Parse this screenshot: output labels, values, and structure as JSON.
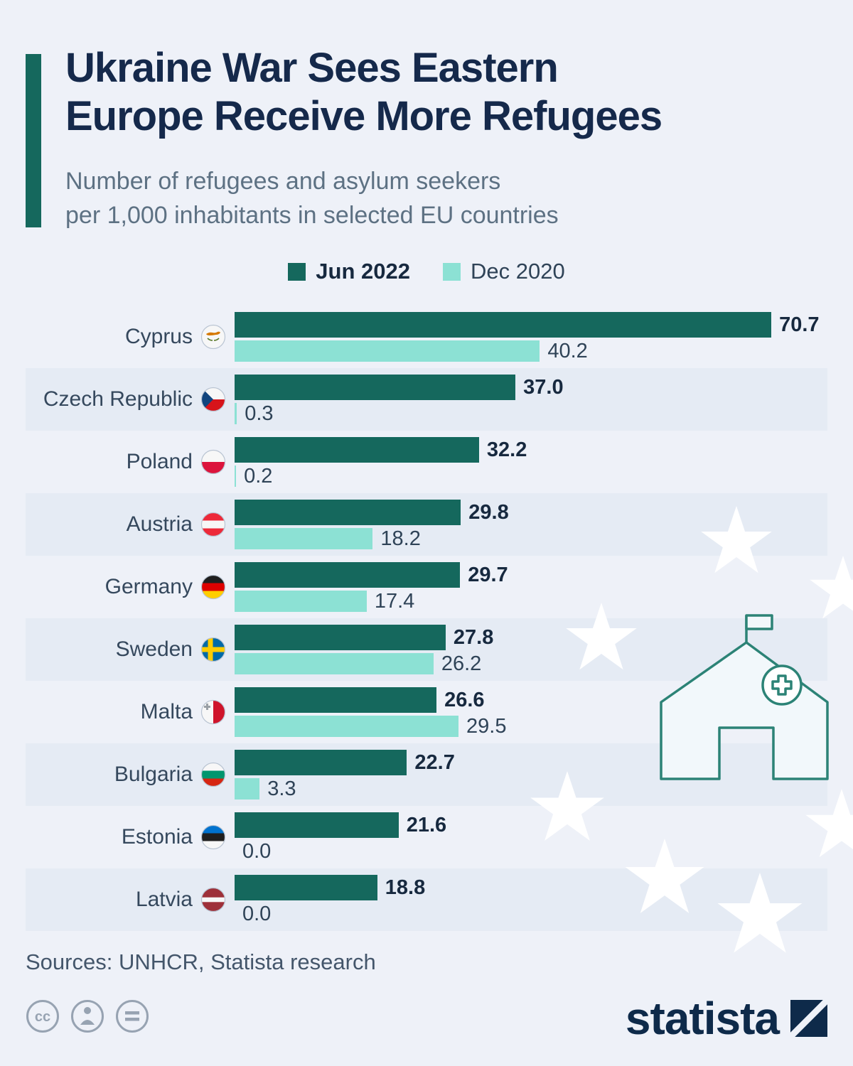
{
  "header": {
    "title_lines": [
      "Ukraine War Sees Eastern",
      "Europe Receive More Refugees"
    ],
    "subtitle_lines": [
      "Number of refugees and asylum seekers",
      "per 1,000 inhabitants in selected EU countries"
    ]
  },
  "legend": {
    "items": [
      {
        "label": "Jun 2022",
        "color": "#15685d"
      },
      {
        "label": "Dec 2020",
        "color": "#8ce1d4"
      }
    ]
  },
  "chart_data": {
    "type": "bar",
    "orientation": "horizontal",
    "title": "Ukraine War Sees Eastern Europe Receive More Refugees",
    "subtitle": "Number of refugees and asylum seekers per 1,000 inhabitants in selected EU countries",
    "xlabel": "",
    "ylabel": "",
    "xlim": [
      0,
      75
    ],
    "grid": false,
    "legend_position": "top-center",
    "series_names": [
      "Jun 2022",
      "Dec 2020"
    ],
    "categories": [
      "Cyprus",
      "Czech Republic",
      "Poland",
      "Austria",
      "Germany",
      "Sweden",
      "Malta",
      "Bulgaria",
      "Estonia",
      "Latvia"
    ],
    "series": [
      {
        "name": "Jun 2022",
        "values": [
          70.7,
          37.0,
          32.2,
          29.8,
          29.7,
          27.8,
          26.6,
          22.7,
          21.6,
          18.8
        ]
      },
      {
        "name": "Dec 2020",
        "values": [
          40.2,
          0.3,
          0.2,
          18.2,
          17.4,
          26.2,
          29.5,
          3.3,
          0.0,
          0.0
        ]
      }
    ],
    "rows": [
      {
        "country": "Cyprus",
        "jun": 70.7,
        "jun_label": "70.7",
        "dec": 40.2,
        "dec_label": "40.2",
        "flag": {
          "type": "cyprus",
          "name": "cyprus-flag-icon"
        }
      },
      {
        "country": "Czech Republic",
        "jun": 37.0,
        "jun_label": "37.0",
        "dec": 0.3,
        "dec_label": "0.3",
        "flag": {
          "type": "czech",
          "name": "czech-republic-flag-icon"
        }
      },
      {
        "country": "Poland",
        "jun": 32.2,
        "jun_label": "32.2",
        "dec": 0.2,
        "dec_label": "0.2",
        "flag": {
          "type": "hstripes",
          "name": "poland-flag-icon",
          "colors": [
            "#f7f7f7",
            "#DC143C"
          ]
        }
      },
      {
        "country": "Austria",
        "jun": 29.8,
        "jun_label": "29.8",
        "dec": 18.2,
        "dec_label": "18.2",
        "flag": {
          "type": "hstripes",
          "name": "austria-flag-icon",
          "colors": [
            "#ED2939",
            "#f7f7f7",
            "#ED2939"
          ]
        }
      },
      {
        "country": "Germany",
        "jun": 29.7,
        "jun_label": "29.7",
        "dec": 17.4,
        "dec_label": "17.4",
        "flag": {
          "type": "hstripes",
          "name": "germany-flag-icon",
          "colors": [
            "#1f1f1f",
            "#DD0000",
            "#FFCE00"
          ]
        }
      },
      {
        "country": "Sweden",
        "jun": 27.8,
        "jun_label": "27.8",
        "dec": 26.2,
        "dec_label": "26.2",
        "flag": {
          "type": "nordic",
          "name": "sweden-flag-icon",
          "bg": "#006AA7",
          "cross": "#FECC00"
        }
      },
      {
        "country": "Malta",
        "jun": 26.6,
        "jun_label": "26.6",
        "dec": 29.5,
        "dec_label": "29.5",
        "flag": {
          "type": "malta",
          "name": "malta-flag-icon"
        }
      },
      {
        "country": "Bulgaria",
        "jun": 22.7,
        "jun_label": "22.7",
        "dec": 3.3,
        "dec_label": "3.3",
        "flag": {
          "type": "hstripes",
          "name": "bulgaria-flag-icon",
          "colors": [
            "#f7f7f7",
            "#00966E",
            "#D62612"
          ]
        }
      },
      {
        "country": "Estonia",
        "jun": 21.6,
        "jun_label": "21.6",
        "dec": 0.0,
        "dec_label": "0.0",
        "flag": {
          "type": "hstripes",
          "name": "estonia-flag-icon",
          "colors": [
            "#0072CE",
            "#1f1f1f",
            "#f7f7f7"
          ]
        }
      },
      {
        "country": "Latvia",
        "jun": 18.8,
        "jun_label": "18.8",
        "dec": 0.0,
        "dec_label": "0.0",
        "flag": {
          "type": "hstripes",
          "name": "latvia-flag-icon",
          "colors": [
            "#9E3039",
            "#f7f7f7",
            "#9E3039"
          ],
          "weights": [
            2,
            1,
            2
          ]
        }
      }
    ]
  },
  "decorations": {
    "icons": [
      "eu-star-icon",
      "refugee-tent-icon",
      "medical-cross-icon",
      "flag-icon"
    ]
  },
  "footer": {
    "sources": "Sources: UNHCR, Statista research",
    "brand": "statista",
    "license_icons": [
      "cc-icon",
      "attribution-icon",
      "equals-icon"
    ]
  },
  "colors": {
    "jun_bar": "#15685d",
    "dec_bar": "#8ce1d4",
    "accent_bar": "#15685d",
    "title": "#15294b",
    "subtitle": "#5d7183",
    "background": "#eef1f8",
    "band": "#e5ebf4",
    "brand_navy": "#0e2a4a"
  }
}
